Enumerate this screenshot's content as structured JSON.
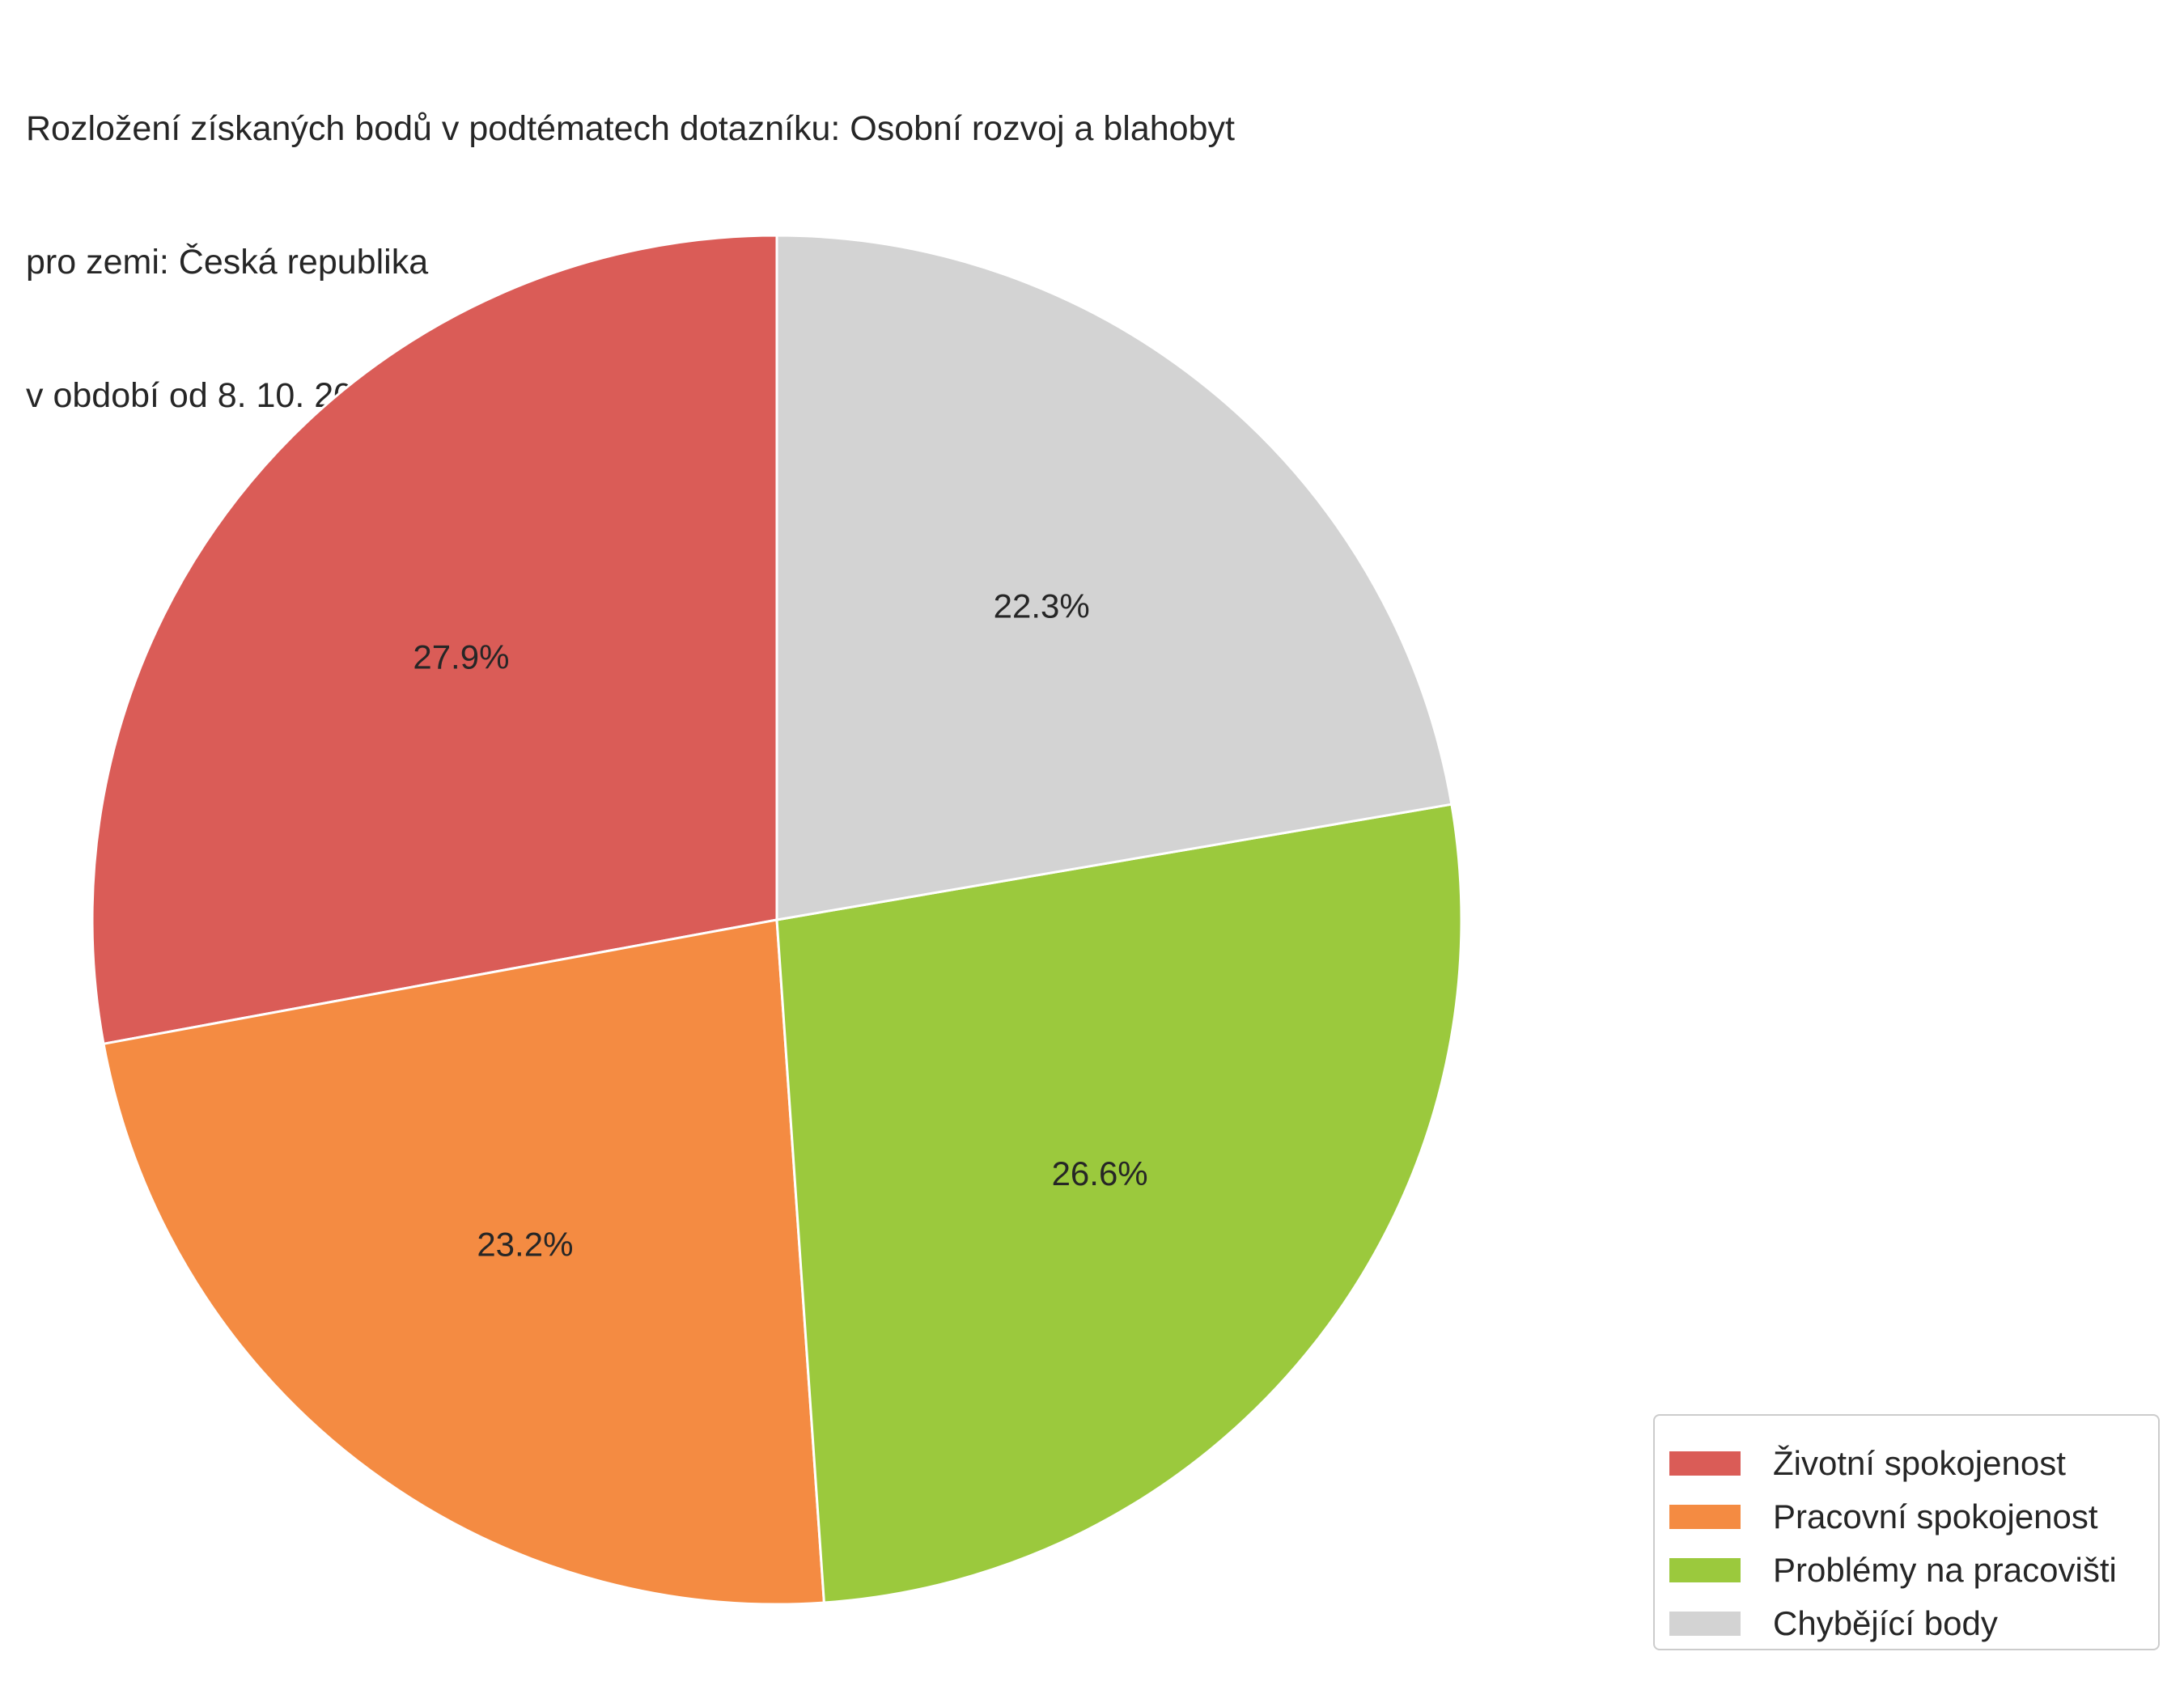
{
  "chart_data": {
    "type": "pie",
    "title_lines": [
      "Rozložení získaných bodů v podtématech dotazníku: Osobní rozvoj a blahobyt",
      "pro zemi: Česká republika",
      "v období od 8. 10. 2024 do 11. 12. 2024"
    ],
    "slices": [
      {
        "label": "Životní spokojenost",
        "value": 27.9,
        "value_label": "27.9%",
        "color": "#da5c57"
      },
      {
        "label": "Pracovní spokojenost",
        "value": 23.2,
        "value_label": "23.2%",
        "color": "#f48b42"
      },
      {
        "label": "Problémy na pracovišti",
        "value": 26.6,
        "value_label": "26.6%",
        "color": "#9bc93d"
      },
      {
        "label": "Chybějící body",
        "value": 22.3,
        "value_label": "22.3%",
        "color": "#d3d3d3"
      }
    ],
    "start_angle": "top",
    "direction": "counterclockwise",
    "legend_position": "bottom-right"
  }
}
